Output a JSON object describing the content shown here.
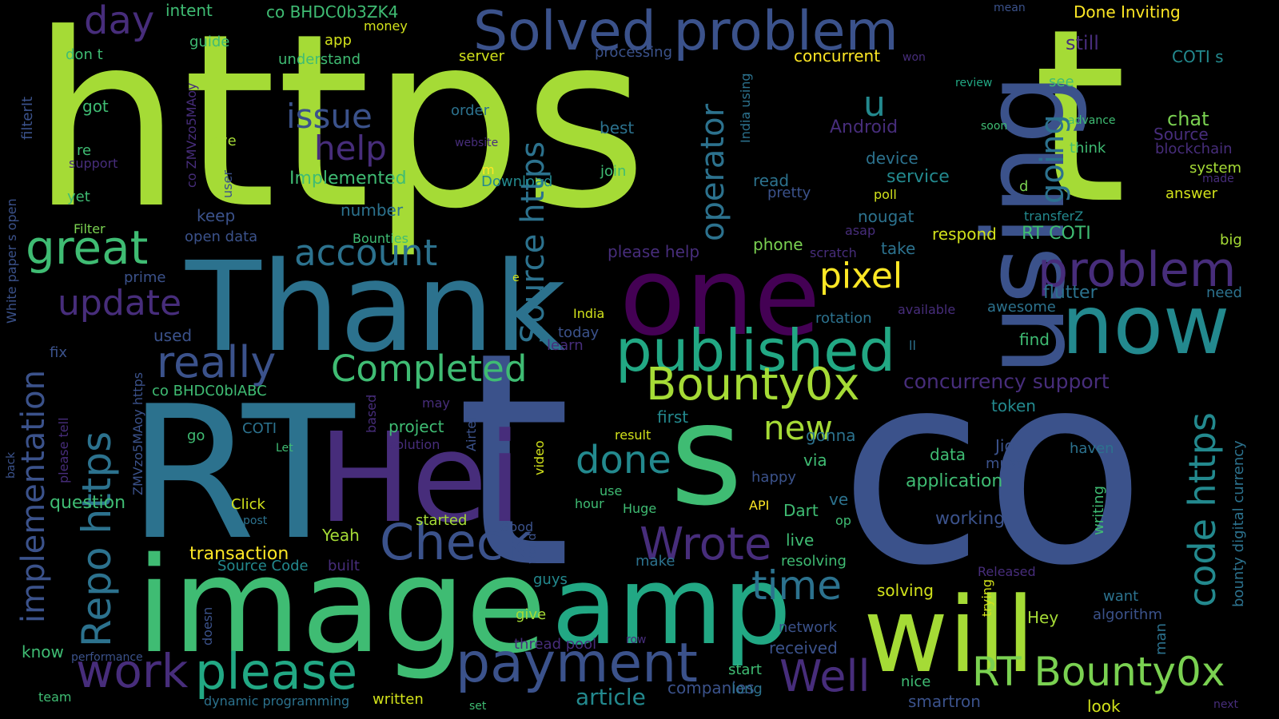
{
  "palette": {
    "background": "#000000",
    "lime": "#a5db36",
    "yellowgreen": "#7ad151",
    "green": "#3fbc73",
    "teal": "#22a884",
    "tealblue": "#23898e",
    "blue": "#2c728e",
    "indigo": "#3b528b",
    "violet": "#472d7b",
    "purple": "#440154",
    "yellow": "#fde725",
    "gold": "#d2e21b"
  },
  "words": [
    {
      "text": "https",
      "color": "#a5db36"
    },
    {
      "text": "t",
      "color": "#a5db36"
    },
    {
      "text": "t",
      "color": "#3b528b"
    },
    {
      "text": "co",
      "color": "#3b528b"
    },
    {
      "text": "RT",
      "color": "#2c728e"
    },
    {
      "text": "image",
      "color": "#3fbc73"
    },
    {
      "text": "Thank",
      "color": "#2c728e"
    },
    {
      "text": "using",
      "color": "#3b528b"
    },
    {
      "text": "one",
      "color": "#440154"
    },
    {
      "text": "now",
      "color": "#23898e"
    },
    {
      "text": "Hei",
      "color": "#472d7b"
    },
    {
      "text": "s",
      "color": "#3fbc73"
    },
    {
      "text": "amp",
      "color": "#22a884"
    },
    {
      "text": "will",
      "color": "#a5db36"
    },
    {
      "text": "Solved problem",
      "color": "#3b528b"
    },
    {
      "text": "published",
      "color": "#22a884"
    },
    {
      "text": "problem",
      "color": "#472d7b"
    },
    {
      "text": "payment",
      "color": "#3b528b"
    },
    {
      "text": "please",
      "color": "#22a884"
    },
    {
      "text": "RT Bounty0x",
      "color": "#7ad151"
    },
    {
      "text": "Bounty0x",
      "color": "#a5db36"
    },
    {
      "text": "Wrote",
      "color": "#472d7b"
    },
    {
      "text": "Check",
      "color": "#3b528b"
    },
    {
      "text": "Completed",
      "color": "#3fbc73"
    },
    {
      "text": "really",
      "color": "#3b528b"
    },
    {
      "text": "great",
      "color": "#3fbc73"
    },
    {
      "text": "account",
      "color": "#2c728e"
    },
    {
      "text": "issue",
      "color": "#3b528b"
    },
    {
      "text": "help",
      "color": "#472d7b"
    },
    {
      "text": "update",
      "color": "#472d7b"
    },
    {
      "text": "day",
      "color": "#472d7b"
    },
    {
      "text": "work",
      "color": "#472d7b"
    },
    {
      "text": "Well",
      "color": "#472d7b"
    },
    {
      "text": "time",
      "color": "#2c728e"
    },
    {
      "text": "done",
      "color": "#23898e"
    },
    {
      "text": "pixel",
      "color": "#fde725"
    },
    {
      "text": "new",
      "color": "#a5db36"
    },
    {
      "text": "u",
      "color": "#23898e"
    },
    {
      "text": "code https",
      "color": "#23898e"
    },
    {
      "text": "Repo https",
      "color": "#2c728e"
    },
    {
      "text": "implementation",
      "color": "#3b528b"
    },
    {
      "text": "Source https",
      "color": "#2c728e"
    },
    {
      "text": "operator",
      "color": "#2c728e"
    },
    {
      "text": "going",
      "color": "#2c728e"
    },
    {
      "text": "article",
      "color": "#23898e"
    },
    {
      "text": "concurrency support",
      "color": "#472d7b"
    },
    {
      "text": "transaction",
      "color": "#fde725"
    },
    {
      "text": "Source Code",
      "color": "#23898e"
    },
    {
      "text": "built",
      "color": "#472d7b"
    },
    {
      "text": "question",
      "color": "#3fbc73"
    },
    {
      "text": "Implemented",
      "color": "#3fbc73"
    },
    {
      "text": "Done Inviting",
      "color": "#fde725"
    },
    {
      "text": "COTI s",
      "color": "#23898e"
    },
    {
      "text": "concurrent",
      "color": "#fde725"
    },
    {
      "text": "still",
      "color": "#472d7b"
    },
    {
      "text": "chat",
      "color": "#7ad151"
    },
    {
      "text": "Source",
      "color": "#472d7b"
    },
    {
      "text": "blockchain",
      "color": "#472d7b"
    },
    {
      "text": "system",
      "color": "#a5db36"
    },
    {
      "text": "answer",
      "color": "#d2e21b"
    },
    {
      "text": "Android",
      "color": "#472d7b"
    },
    {
      "text": "device",
      "color": "#2c728e"
    },
    {
      "text": "service",
      "color": "#23898e"
    },
    {
      "text": "read",
      "color": "#2c728e"
    },
    {
      "text": "pretty",
      "color": "#3b528b"
    },
    {
      "text": "poll",
      "color": "#d2e21b"
    },
    {
      "text": "nougat",
      "color": "#2c728e"
    },
    {
      "text": "asap",
      "color": "#472d7b"
    },
    {
      "text": "respond",
      "color": "#d2e21b"
    },
    {
      "text": "RT COTI",
      "color": "#3fbc73"
    },
    {
      "text": "transferZ",
      "color": "#23898e"
    },
    {
      "text": "big",
      "color": "#a5db36"
    },
    {
      "text": "need",
      "color": "#2c728e"
    },
    {
      "text": "flutter",
      "color": "#2c728e"
    },
    {
      "text": "awesome",
      "color": "#2c728e"
    },
    {
      "text": "available",
      "color": "#472d7b"
    },
    {
      "text": "rotation",
      "color": "#2c728e"
    },
    {
      "text": "find",
      "color": "#3fbc73"
    },
    {
      "text": "learn",
      "color": "#472d7b"
    },
    {
      "text": "today",
      "color": "#3b528b"
    },
    {
      "text": "India",
      "color": "#d2e21b"
    },
    {
      "text": "phone",
      "color": "#7ad151"
    },
    {
      "text": "scratch",
      "color": "#472d7b"
    },
    {
      "text": "take",
      "color": "#2c728e"
    },
    {
      "text": "please help",
      "color": "#472d7b"
    },
    {
      "text": "token",
      "color": "#23898e"
    },
    {
      "text": "data",
      "color": "#3fbc73"
    },
    {
      "text": "application",
      "color": "#3fbc73"
    },
    {
      "text": "working",
      "color": "#3b528b"
    },
    {
      "text": "Jio",
      "color": "#3b528b"
    },
    {
      "text": "must",
      "color": "#3b528b"
    },
    {
      "text": "haven",
      "color": "#2c728e"
    },
    {
      "text": "gonna",
      "color": "#2c728e"
    },
    {
      "text": "via",
      "color": "#3fbc73"
    },
    {
      "text": "happy",
      "color": "#3b528b"
    },
    {
      "text": "ve",
      "color": "#2c728e"
    },
    {
      "text": "op",
      "color": "#3fbc73"
    },
    {
      "text": "Dart",
      "color": "#3fbc73"
    },
    {
      "text": "live",
      "color": "#3fbc73"
    },
    {
      "text": "resolving",
      "color": "#3fbc73"
    },
    {
      "text": "received",
      "color": "#3b528b"
    },
    {
      "text": "solving",
      "color": "#d2e21b"
    },
    {
      "text": "Hey",
      "color": "#a5db36"
    },
    {
      "text": "want",
      "color": "#2c728e"
    },
    {
      "text": "algorithm",
      "color": "#3b528b"
    },
    {
      "text": "Released",
      "color": "#472d7b"
    },
    {
      "text": "network",
      "color": "#3b528b"
    },
    {
      "text": "start",
      "color": "#3fbc73"
    },
    {
      "text": "companies",
      "color": "#3b528b"
    },
    {
      "text": "long",
      "color": "#2c728e"
    },
    {
      "text": "nice",
      "color": "#3fbc73"
    },
    {
      "text": "smartron",
      "color": "#3b528b"
    },
    {
      "text": "look",
      "color": "#d2e21b"
    },
    {
      "text": "next",
      "color": "#472d7b"
    },
    {
      "text": "writing",
      "color": "#3fbc73"
    },
    {
      "text": "bounty digital currency",
      "color": "#2c728e"
    },
    {
      "text": "trying",
      "color": "#d2e21b"
    },
    {
      "text": "man",
      "color": "#2c728e"
    },
    {
      "text": "intent",
      "color": "#3fbc73"
    },
    {
      "text": "co BHDC0b3ZK4",
      "color": "#3fbc73"
    },
    {
      "text": "money",
      "color": "#d2e21b"
    },
    {
      "text": "app",
      "color": "#d2e21b"
    },
    {
      "text": "guide",
      "color": "#3fbc73"
    },
    {
      "text": "understand",
      "color": "#3fbc73"
    },
    {
      "text": "server",
      "color": "#d2e21b"
    },
    {
      "text": "processing",
      "color": "#3b528b"
    },
    {
      "text": "won",
      "color": "#472d7b"
    },
    {
      "text": "mean",
      "color": "#3b528b"
    },
    {
      "text": "review",
      "color": "#22a884"
    },
    {
      "text": "see",
      "color": "#3fbc73"
    },
    {
      "text": "advance",
      "color": "#3fbc73"
    },
    {
      "text": "soon",
      "color": "#3fbc73"
    },
    {
      "text": "think",
      "color": "#3fbc73"
    },
    {
      "text": "made",
      "color": "#472d7b"
    },
    {
      "text": "d",
      "color": "#7ad151"
    },
    {
      "text": "don t",
      "color": "#3fbc73"
    },
    {
      "text": "got",
      "color": "#3fbc73"
    },
    {
      "text": "order",
      "color": "#2c728e"
    },
    {
      "text": "best",
      "color": "#2c728e"
    },
    {
      "text": "love",
      "color": "#a5db36"
    },
    {
      "text": "website",
      "color": "#472d7b"
    },
    {
      "text": "join",
      "color": "#3fbc73"
    },
    {
      "text": "m",
      "color": "#fde725"
    },
    {
      "text": "Download",
      "color": "#23898e"
    },
    {
      "text": "re",
      "color": "#3fbc73"
    },
    {
      "text": "support",
      "color": "#472d7b"
    },
    {
      "text": "yet",
      "color": "#3fbc73"
    },
    {
      "text": "keep",
      "color": "#3b528b"
    },
    {
      "text": "number",
      "color": "#2c728e"
    },
    {
      "text": "Filter",
      "color": "#7ad151"
    },
    {
      "text": "Bounties",
      "color": "#3fbc73"
    },
    {
      "text": "open data",
      "color": "#3b528b"
    },
    {
      "text": "prime",
      "color": "#3b528b"
    },
    {
      "text": "used",
      "color": "#3b528b"
    },
    {
      "text": "fix",
      "color": "#3b528b"
    },
    {
      "text": "co BHDC0blABC",
      "color": "#3fbc73"
    },
    {
      "text": "COTI",
      "color": "#2c728e"
    },
    {
      "text": "may",
      "color": "#472d7b"
    },
    {
      "text": "first",
      "color": "#23898e"
    },
    {
      "text": "project",
      "color": "#3fbc73"
    },
    {
      "text": "solution",
      "color": "#472d7b"
    },
    {
      "text": "result",
      "color": "#d2e21b"
    },
    {
      "text": "go",
      "color": "#3fbc73"
    },
    {
      "text": "Let",
      "color": "#3fbc73"
    },
    {
      "text": "use",
      "color": "#3fbc73"
    },
    {
      "text": "hour",
      "color": "#3fbc73"
    },
    {
      "text": "Huge",
      "color": "#3fbc73"
    },
    {
      "text": "API",
      "color": "#fde725"
    },
    {
      "text": "Click",
      "color": "#d2e21b"
    },
    {
      "text": "post",
      "color": "#2c728e"
    },
    {
      "text": "started",
      "color": "#a5db36"
    },
    {
      "text": "Good",
      "color": "#3b528b"
    },
    {
      "text": "Yeah",
      "color": "#a5db36"
    },
    {
      "text": "make",
      "color": "#2c728e"
    },
    {
      "text": "guys",
      "color": "#23898e"
    },
    {
      "text": "give",
      "color": "#a5db36"
    },
    {
      "text": "thread pool",
      "color": "#472d7b"
    },
    {
      "text": "row",
      "color": "#472d7b"
    },
    {
      "text": "know",
      "color": "#3fbc73"
    },
    {
      "text": "performance",
      "color": "#3b528b"
    },
    {
      "text": "team",
      "color": "#3fbc73"
    },
    {
      "text": "dynamic programming",
      "color": "#2c728e"
    },
    {
      "text": "written",
      "color": "#d2e21b"
    },
    {
      "text": "set",
      "color": "#3fbc73"
    },
    {
      "text": "filterIt",
      "color": "#3b528b"
    },
    {
      "text": "White paper s open",
      "color": "#3b528b"
    },
    {
      "text": "please tell",
      "color": "#472d7b"
    },
    {
      "text": "back",
      "color": "#3b528b"
    },
    {
      "text": "co ZMVzo5MAoy",
      "color": "#472d7b"
    },
    {
      "text": "user",
      "color": "#3b528b"
    },
    {
      "text": "ZMVzo5MAoy https",
      "color": "#3b528b"
    },
    {
      "text": "based",
      "color": "#472d7b"
    },
    {
      "text": "Airtel",
      "color": "#3b528b"
    },
    {
      "text": "video",
      "color": "#d2e21b"
    },
    {
      "text": "world",
      "color": "#3b528b"
    },
    {
      "text": "doesn",
      "color": "#3b528b"
    },
    {
      "text": "India using",
      "color": "#2c728e"
    },
    {
      "text": "e",
      "color": "#d2e21b"
    },
    {
      "text": "ll",
      "color": "#2c728e"
    }
  ]
}
